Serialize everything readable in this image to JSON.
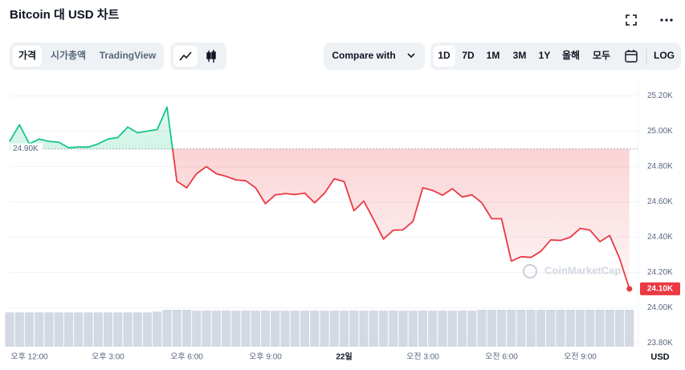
{
  "ui": {
    "tabs": [
      "가격",
      "시가총액",
      "TradingView"
    ],
    "compare": "Compare with",
    "ranges": [
      "1D",
      "7D",
      "1M",
      "3M",
      "1Y",
      "올해",
      "모두"
    ],
    "log": "LOG"
  },
  "chart_data": {
    "type": "line",
    "title": "Bitcoin 대 USD 차트",
    "categories": [
      null,
      null,
      "오후 12:00",
      null,
      null,
      null,
      null,
      null,
      null,
      null,
      "오후 3:00",
      null,
      null,
      null,
      null,
      null,
      null,
      null,
      "오후 6:00",
      null,
      null,
      null,
      null,
      null,
      null,
      null,
      "오후 9:00",
      null,
      null,
      null,
      null,
      null,
      null,
      null,
      "22일",
      null,
      null,
      null,
      null,
      null,
      null,
      null,
      "오전 3:00",
      null,
      null,
      null,
      null,
      null,
      null,
      null,
      "오전 6:00",
      null,
      null,
      null,
      null,
      null,
      null,
      null,
      "오전 9:00",
      null,
      null,
      null,
      null,
      null
    ],
    "values": [
      24943,
      25037,
      24929,
      24956,
      24943,
      24938,
      24907,
      24911,
      24911,
      24929,
      24956,
      24965,
      25024,
      24992,
      25001,
      25010,
      25137,
      24717,
      24680,
      24760,
      24800,
      24760,
      24745,
      24725,
      24720,
      24680,
      24590,
      24640,
      24647,
      24642,
      24650,
      24595,
      24649,
      24731,
      24715,
      24550,
      24605,
      24500,
      24390,
      24440,
      24442,
      24490,
      24680,
      24665,
      24638,
      24675,
      24628,
      24640,
      24595,
      24505,
      24505,
      24265,
      24290,
      24286,
      24320,
      24385,
      24382,
      24400,
      24450,
      24440,
      24375,
      24410,
      24280,
      24108
    ],
    "volume": [
      40,
      40,
      40,
      40,
      40,
      40,
      40,
      40,
      40,
      40,
      40,
      40,
      40,
      40,
      40,
      41,
      43,
      43,
      43,
      42,
      42,
      42,
      42,
      42,
      42,
      42,
      42,
      42,
      42,
      42,
      42,
      42,
      42,
      42,
      42,
      42,
      42,
      42,
      42,
      42,
      42,
      42,
      42,
      42,
      42,
      42,
      42,
      42,
      43,
      43,
      43,
      43,
      43,
      43,
      43,
      43,
      43,
      43,
      43,
      43,
      43,
      43,
      43,
      43
    ],
    "color_up": "#16c784",
    "color_down": "#ea3943",
    "volume_color": "#d3d9e3",
    "baseline": {
      "value": 24900,
      "label": "24.90K"
    },
    "last_label": "24.10K",
    "currency": "USD",
    "watermark": "CoinMarketCap",
    "ylim": [
      23780,
      25300
    ],
    "yticks": [
      {
        "value": 23800,
        "label": "23.80K"
      },
      {
        "value": 24000,
        "label": "24.00K"
      },
      {
        "value": 24200,
        "label": "24.20K"
      },
      {
        "value": 24400,
        "label": "24.40K"
      },
      {
        "value": 24600,
        "label": "24.60K"
      },
      {
        "value": 24800,
        "label": "24.80K"
      },
      {
        "value": 25000,
        "label": "25.00K"
      },
      {
        "value": 25200,
        "label": "25.20K"
      }
    ],
    "grid": true
  }
}
